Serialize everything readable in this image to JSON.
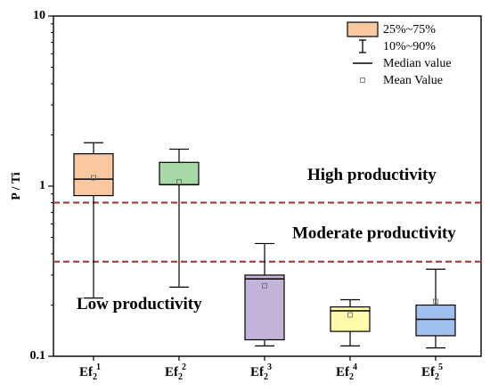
{
  "chart_data": {
    "type": "box",
    "title": "",
    "xlabel": "",
    "ylabel": "P / Ti",
    "yscale": "log",
    "ylim": [
      0.1,
      10
    ],
    "y_ticks": [
      {
        "value": 0.1,
        "label": "0.1"
      },
      {
        "value": 1,
        "label": "1"
      },
      {
        "value": 10,
        "label": "10"
      }
    ],
    "categories": [
      {
        "base": "Ef",
        "sub": "2",
        "sup": "1"
      },
      {
        "base": "Ef",
        "sub": "2",
        "sup": "2"
      },
      {
        "base": "Ef",
        "sub": "2",
        "sup": "3"
      },
      {
        "base": "Ef",
        "sub": "2",
        "sup": "4"
      },
      {
        "base": "Ef",
        "sub": "2",
        "sup": "5"
      }
    ],
    "boxes": [
      {
        "p10": 0.22,
        "q1": 0.88,
        "median": 1.1,
        "q3": 1.55,
        "p90": 1.8,
        "mean": 1.12,
        "color": "#FAC8A0"
      },
      {
        "p10": 0.255,
        "q1": 1.02,
        "median": 1.02,
        "q3": 1.38,
        "p90": 1.65,
        "mean": 1.06,
        "color": "#A6D9A6"
      },
      {
        "p10": 0.115,
        "q1": 0.125,
        "median": 0.285,
        "q3": 0.3,
        "p90": 0.46,
        "mean": 0.26,
        "color": "#C3B3D9"
      },
      {
        "p10": 0.115,
        "q1": 0.14,
        "median": 0.185,
        "q3": 0.195,
        "p90": 0.215,
        "mean": 0.175,
        "color": "#FFFBAA"
      },
      {
        "p10": 0.112,
        "q1": 0.132,
        "median": 0.165,
        "q3": 0.2,
        "p90": 0.325,
        "mean": 0.21,
        "color": "#9FC0EC"
      }
    ],
    "thresholds": [
      {
        "value": 0.8,
        "color": "#A0322D"
      },
      {
        "value": 0.36,
        "color": "#A0322D"
      }
    ],
    "annotations": [
      {
        "text": "High productivity",
        "y": 1.15
      },
      {
        "text": "Moderate productivity",
        "y": 0.52
      },
      {
        "text": "Low productivity",
        "y": 0.2
      }
    ],
    "legend": {
      "position": "top-right",
      "items": [
        {
          "kind": "box",
          "label": "25%~75%",
          "color": "#FAC8A0"
        },
        {
          "kind": "whisker",
          "label": "10%~90%"
        },
        {
          "kind": "median",
          "label": "Median value"
        },
        {
          "kind": "mean",
          "label": "Mean Value"
        }
      ]
    }
  }
}
